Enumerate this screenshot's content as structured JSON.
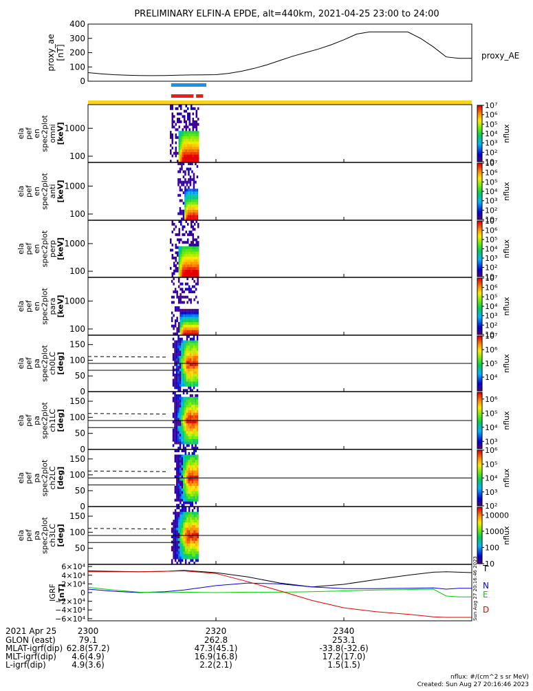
{
  "title": "PRELIMINARY ELFIN-A EPDE, alt=440km, 2021-04-25 23:00 to 24:00",
  "colors": {
    "ae_line": "#000000",
    "bar_blue": "#1e8fe6",
    "bar_red": "#ee1c1c",
    "bar_yellow": "#ffd21a",
    "grid": "#000000",
    "T": "#000000",
    "N": "#0000dd",
    "E": "#00cc00",
    "D": "#dd0000"
  },
  "time_axis": {
    "start_min": 0,
    "end_min": 60,
    "hour_label": "2021 Apr 25",
    "ticks": [
      {
        "min": 0,
        "label": "2300"
      },
      {
        "min": 20,
        "label": "2320"
      },
      {
        "min": 40,
        "label": "2340"
      }
    ]
  },
  "ephemeris": [
    {
      "label": "GLON (east)",
      "values": [
        "79.1",
        "262.8",
        "253.1"
      ]
    },
    {
      "label": "MLAT-igrf(dip)",
      "values": [
        "62.8(57.2)",
        "47.3(45.1)",
        "-33.8(-32.6)"
      ]
    },
    {
      "label": "MLT-igrf(dip)",
      "values": [
        "4.6(4.9)",
        "16.9(16.8)",
        "17.2(17.0)"
      ]
    },
    {
      "label": "L-igrf(dip)",
      "values": [
        "4.9(3.6)",
        "2.2(2.1)",
        "1.5(1.5)"
      ]
    }
  ],
  "footer": {
    "units": "nflux: #/(cm^2 s sr MeV)",
    "created": "Created: Sun Aug 27 20:16:46 2023",
    "side_stamp": "Sun Aug 27 20:16:46 2023"
  },
  "chart_data": [
    {
      "type": "line",
      "name": "proxy_ae",
      "ylabel": "proxy_ae [nT]",
      "legend": "proxy_AE",
      "ylim": [
        0,
        400
      ],
      "yticks": [
        0,
        100,
        200,
        300,
        400
      ],
      "x": [
        0,
        2,
        4,
        6,
        8,
        10,
        12,
        14,
        16,
        18,
        20,
        22,
        24,
        26,
        28,
        30,
        32,
        34,
        36,
        38,
        40,
        42,
        44,
        46,
        48,
        50,
        52,
        54,
        56,
        58,
        60
      ],
      "values": [
        60,
        52,
        46,
        42,
        40,
        39,
        40,
        42,
        44,
        45,
        46,
        55,
        70,
        90,
        115,
        145,
        175,
        200,
        225,
        255,
        290,
        330,
        345,
        345,
        345,
        345,
        300,
        240,
        170,
        160,
        160
      ]
    },
    {
      "type": "bar",
      "name": "science-zone-bars",
      "segments": [
        {
          "color": "blue",
          "from": 13.0,
          "to": 18.5
        },
        {
          "color": "red",
          "from": 13.0,
          "to": 16.5
        },
        {
          "color": "red",
          "from": 16.9,
          "to": 18.0
        },
        {
          "color": "yellow",
          "from": 0,
          "to": 60
        }
      ]
    },
    {
      "type": "heatmap",
      "name": "ela_pef_en_spec2plot_omni",
      "ylabel": [
        "ela",
        "pef",
        "en",
        "spec2plot",
        "omni",
        "[keV]"
      ],
      "ylog": true,
      "ylim": [
        60,
        7000
      ],
      "yticks": [
        {
          "v": 100,
          "label": "100"
        },
        {
          "v": 1000,
          "label": "1000"
        }
      ],
      "zlabel": "nflux",
      "zlim": [
        10,
        10000000
      ],
      "zticks": [
        {
          "v": 10,
          "label": "10"
        },
        {
          "v": 100,
          "label": "10²"
        },
        {
          "v": 1000,
          "label": "10³"
        },
        {
          "v": 10000,
          "label": "10⁴"
        },
        {
          "v": 100000,
          "label": "10⁵"
        },
        {
          "v": 1000000,
          "label": "10⁶"
        },
        {
          "v": 10000000,
          "label": "10⁷"
        }
      ],
      "horiz_lines": [],
      "region": [
        12.8,
        17.2
      ],
      "decay": 1.0,
      "noise_top": 6.0
    },
    {
      "type": "heatmap",
      "name": "ela_pef_en_spec2plot_anti",
      "ylabel": [
        "ela",
        "pef",
        "en",
        "spec2plot",
        "anti",
        "[keV]"
      ],
      "ylog": true,
      "ylim": [
        60,
        7000
      ],
      "yticks": [
        {
          "v": 100,
          "label": "100"
        },
        {
          "v": 1000,
          "label": "1000"
        }
      ],
      "zlabel": "nflux",
      "zlim": [
        10,
        10000000
      ],
      "zticks": [
        {
          "v": 10,
          "label": "10"
        },
        {
          "v": 100,
          "label": "10²"
        },
        {
          "v": 1000,
          "label": "10³"
        },
        {
          "v": 10000,
          "label": "10⁴"
        },
        {
          "v": 100000,
          "label": "10⁵"
        },
        {
          "v": 1000000,
          "label": "10⁶"
        },
        {
          "v": 10000000,
          "label": "10⁷"
        }
      ],
      "horiz_lines": [],
      "region": [
        14.0,
        17.2
      ],
      "decay": 1.5,
      "noise_top": 4.5
    },
    {
      "type": "heatmap",
      "name": "ela_pef_en_spec2plot_perp",
      "ylabel": [
        "ela",
        "pef",
        "en",
        "spec2plot",
        "perp",
        "[keV]"
      ],
      "ylog": true,
      "ylim": [
        60,
        7000
      ],
      "yticks": [
        {
          "v": 100,
          "label": "100"
        },
        {
          "v": 1000,
          "label": "1000"
        }
      ],
      "zlabel": "nflux",
      "zlim": [
        10,
        10000000
      ],
      "zticks": [
        {
          "v": 10,
          "label": "10"
        },
        {
          "v": 100,
          "label": "10²"
        },
        {
          "v": 1000,
          "label": "10³"
        },
        {
          "v": 10000,
          "label": "10⁴"
        },
        {
          "v": 100000,
          "label": "10⁵"
        },
        {
          "v": 1000000,
          "label": "10⁶"
        },
        {
          "v": 10000000,
          "label": "10⁷"
        }
      ],
      "horiz_lines": [],
      "region": [
        12.8,
        17.2
      ],
      "decay": 1.0,
      "noise_top": 6.0
    },
    {
      "type": "heatmap",
      "name": "ela_pef_en_spec2plot_para",
      "ylabel": [
        "ela",
        "pef",
        "en",
        "spec2plot",
        "para",
        "[keV]"
      ],
      "ylog": true,
      "ylim": [
        60,
        7000
      ],
      "yticks": [
        {
          "v": 100,
          "label": "100"
        },
        {
          "v": 1000,
          "label": "1000"
        }
      ],
      "zlabel": "nflux",
      "zlim": [
        10,
        10000000
      ],
      "zticks": [
        {
          "v": 10,
          "label": "10"
        },
        {
          "v": 100,
          "label": "10²"
        },
        {
          "v": 1000,
          "label": "10³"
        },
        {
          "v": 10000,
          "label": "10⁴"
        },
        {
          "v": 100000,
          "label": "10⁵"
        },
        {
          "v": 1000000,
          "label": "10⁶"
        },
        {
          "v": 10000000,
          "label": "10⁷"
        }
      ],
      "horiz_lines": [],
      "region": [
        13.0,
        17.2
      ],
      "decay": 2.2,
      "noise_top": 3.0
    },
    {
      "type": "heatmap",
      "name": "ela_pef_pa_spec2plot_ch0LC",
      "ylabel": [
        "ela",
        "pef",
        "pa",
        "spec2plot",
        "ch0LC",
        "[deg]"
      ],
      "ylog": false,
      "ylim": [
        0,
        180
      ],
      "yticks": [
        {
          "v": 0,
          "label": "0"
        },
        {
          "v": 50,
          "label": "50"
        },
        {
          "v": 100,
          "label": "100"
        },
        {
          "v": 150,
          "label": "150"
        }
      ],
      "zlabel": "nflux",
      "zlim": [
        1000,
        10000000
      ],
      "zticks": [
        {
          "v": 10000,
          "label": "10⁴"
        },
        {
          "v": 100000,
          "label": "10⁵"
        },
        {
          "v": 1000000,
          "label": "10⁶"
        },
        {
          "v": 10000000,
          "label": "10⁷"
        }
      ],
      "horiz_lines": [
        90
      ],
      "lc_solid": 68,
      "lc_dashed": 112,
      "region": [
        13.2,
        17.2
      ]
    },
    {
      "type": "heatmap",
      "name": "ela_pef_pa_spec2plot_ch1LC",
      "ylabel": [
        "ela",
        "pef",
        "pa",
        "spec2plot",
        "ch1LC",
        "[deg]"
      ],
      "ylog": false,
      "ylim": [
        0,
        180
      ],
      "yticks": [
        {
          "v": 0,
          "label": "0"
        },
        {
          "v": 50,
          "label": "50"
        },
        {
          "v": 100,
          "label": "100"
        },
        {
          "v": 150,
          "label": "150"
        }
      ],
      "zlabel": "nflux",
      "zlim": [
        300,
        3000000
      ],
      "zticks": [
        {
          "v": 1000,
          "label": "10³"
        },
        {
          "v": 10000,
          "label": "10⁴"
        },
        {
          "v": 100000,
          "label": "10⁵"
        },
        {
          "v": 1000000,
          "label": "10⁶"
        }
      ],
      "horiz_lines": [
        90
      ],
      "lc_solid": 68,
      "lc_dashed": 112,
      "region": [
        13.2,
        17.2
      ]
    },
    {
      "type": "heatmap",
      "name": "ela_pef_pa_spec2plot_ch2LC",
      "ylabel": [
        "ela",
        "pef",
        "pa",
        "spec2plot",
        "ch2LC",
        "[deg]"
      ],
      "ylog": false,
      "ylim": [
        0,
        180
      ],
      "yticks": [
        {
          "v": 0,
          "label": "0"
        },
        {
          "v": 50,
          "label": "50"
        },
        {
          "v": 100,
          "label": "100"
        },
        {
          "v": 150,
          "label": "150"
        }
      ],
      "zlabel": "nflux",
      "zlim": [
        100,
        1000000
      ],
      "zticks": [
        {
          "v": 100,
          "label": "10²"
        },
        {
          "v": 1000,
          "label": "10³"
        },
        {
          "v": 10000,
          "label": "10⁴"
        },
        {
          "v": 100000,
          "label": "10⁵"
        },
        {
          "v": 1000000,
          "label": "10⁶"
        }
      ],
      "horiz_lines": [
        90
      ],
      "lc_solid": 68,
      "lc_dashed": 112,
      "region": [
        13.5,
        17.2
      ]
    },
    {
      "type": "heatmap",
      "name": "ela_pef_pa_spec2plot_ch3LC",
      "ylabel": [
        "ela",
        "pef",
        "pa",
        "spec2plot",
        "ch3LC",
        "[deg]"
      ],
      "ylog": false,
      "ylim": [
        0,
        180
      ],
      "yticks": [
        {
          "v": 50,
          "label": "50"
        },
        {
          "v": 100,
          "label": "100"
        },
        {
          "v": 150,
          "label": "150"
        }
      ],
      "zlabel": "nflux",
      "zlim": [
        10,
        30000
      ],
      "zticks": [
        {
          "v": 10,
          "label": "10"
        },
        {
          "v": 100,
          "label": "100"
        },
        {
          "v": 1000,
          "label": "1000"
        },
        {
          "v": 10000,
          "label": "10000"
        }
      ],
      "horiz_lines": [
        90
      ],
      "lc_solid": 68,
      "lc_dashed": 112,
      "region": [
        13.0,
        17.2
      ]
    },
    {
      "type": "line",
      "name": "IGRF",
      "ylabel": [
        "IGRF",
        "[nT]"
      ],
      "ylim": [
        -65000,
        65000
      ],
      "yticks": [
        {
          "v": 60000,
          "label": "6×10⁴"
        },
        {
          "v": 40000,
          "label": "4×10⁴"
        },
        {
          "v": 20000,
          "label": "2×10⁴"
        },
        {
          "v": 0,
          "label": "0"
        },
        {
          "v": -20000,
          "label": "−2×10⁴"
        },
        {
          "v": -40000,
          "label": "−4×10⁴"
        },
        {
          "v": -60000,
          "label": "−6×10⁴"
        }
      ],
      "x": [
        0,
        4,
        8,
        12,
        15,
        20,
        25,
        30,
        35,
        40,
        45,
        50,
        54,
        56,
        58,
        60
      ],
      "series": [
        {
          "name": "T",
          "values": [
            50000,
            49000,
            48000,
            49000,
            51000,
            46000,
            36000,
            22000,
            13000,
            19000,
            30000,
            40000,
            47000,
            48000,
            47000,
            46000
          ]
        },
        {
          "name": "N",
          "values": [
            8000,
            3000,
            0,
            2000,
            6000,
            16000,
            22000,
            20000,
            13000,
            9000,
            9000,
            10000,
            11000,
            8000,
            10000,
            10000
          ]
        },
        {
          "name": "E",
          "values": [
            12000,
            6000,
            1000,
            0,
            1000,
            0,
            1000,
            1000,
            2000,
            4000,
            6000,
            7000,
            8000,
            -8000,
            -10000,
            -10000
          ]
        },
        {
          "name": "D",
          "values": [
            48000,
            48000,
            48000,
            49000,
            50000,
            44000,
            25000,
            4000,
            -18000,
            -35000,
            -44000,
            -50000,
            -56000,
            -57000,
            -57000,
            -57000
          ]
        }
      ]
    }
  ]
}
